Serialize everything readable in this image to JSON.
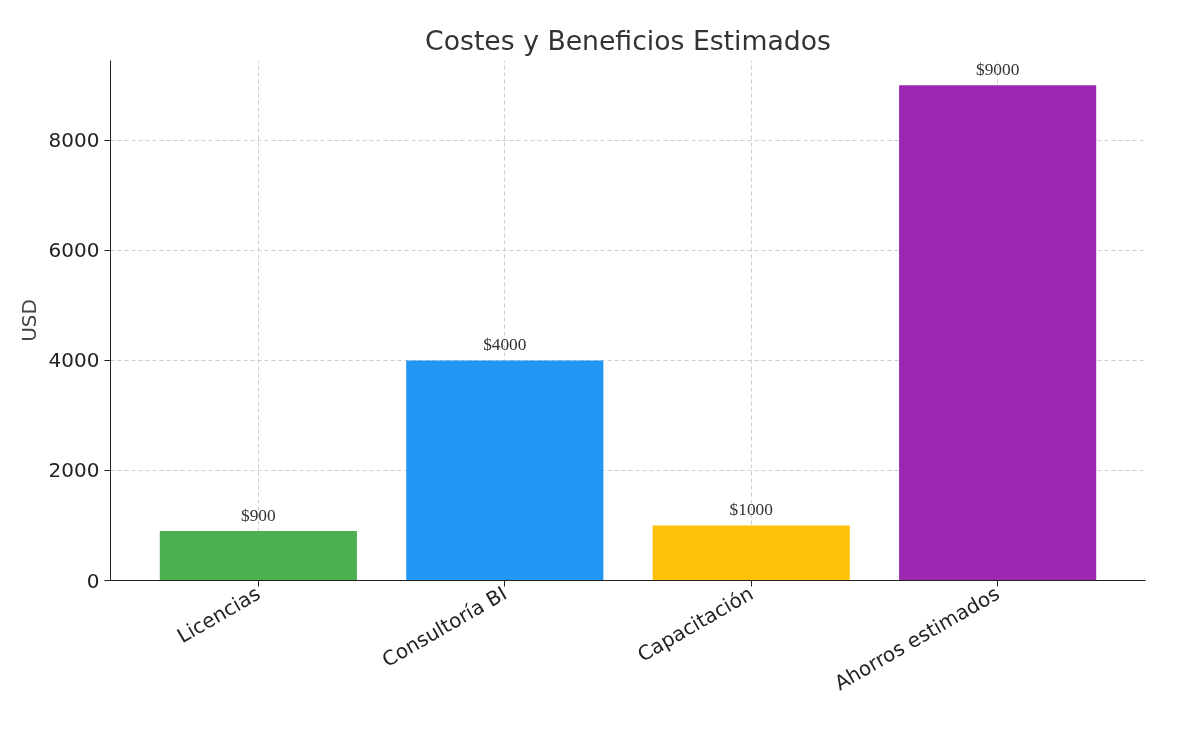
{
  "chart_data": {
    "type": "bar",
    "title": "Costes y Beneficios Estimados",
    "ylabel": "USD",
    "categories": [
      "Licencias",
      "Consultoría BI",
      "Capacitación",
      "Ahorros estimados"
    ],
    "values": [
      900,
      4000,
      1000,
      9000
    ],
    "colors": [
      "#4caf50",
      "#2196f3",
      "#ffc107",
      "#9c27b0"
    ],
    "value_labels": [
      "$900",
      "$4000",
      "$1000",
      "$9000"
    ],
    "ylim": [
      0,
      9450
    ],
    "yticks": [
      0,
      2000,
      4000,
      6000,
      8000
    ],
    "grid": true
  }
}
